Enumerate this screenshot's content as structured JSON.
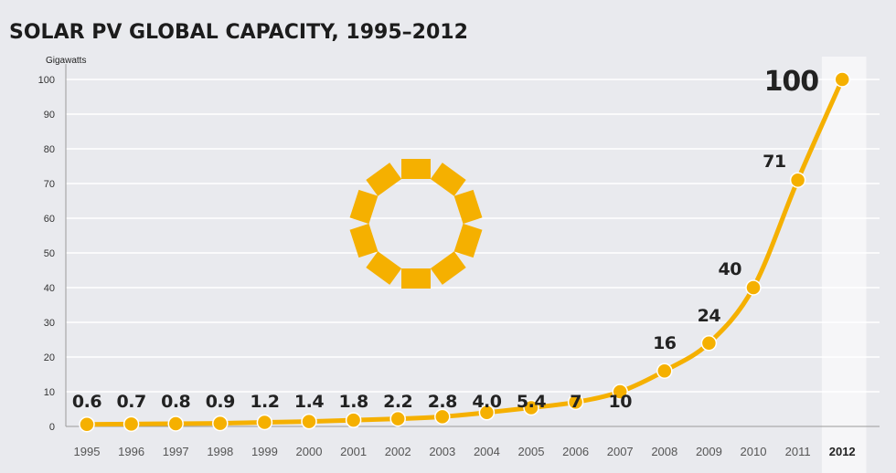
{
  "chart_data": {
    "type": "line",
    "title": "SOLAR PV GLOBAL CAPACITY, 1995–2012",
    "ylabel": "Gigawatts",
    "xlabel": "",
    "categories": [
      "1995",
      "1996",
      "1997",
      "1998",
      "1999",
      "2000",
      "2001",
      "2002",
      "2003",
      "2004",
      "2005",
      "2006",
      "2007",
      "2008",
      "2009",
      "2010",
      "2011",
      "2012"
    ],
    "series": [
      {
        "name": "",
        "values": [
          0.6,
          0.7,
          0.8,
          0.9,
          1.2,
          1.4,
          1.8,
          2.2,
          2.8,
          4.0,
          5.4,
          7,
          10,
          16,
          24,
          40,
          71,
          100
        ],
        "labels": [
          "0.6",
          "0.7",
          "0.8",
          "0.9",
          "1.2",
          "1.4",
          "1.8",
          "2.2",
          "2.8",
          "4.0",
          "5.4",
          "7",
          "10",
          "16",
          "24",
          "40",
          "71",
          "100"
        ]
      }
    ],
    "y_ticks": [
      0,
      10,
      20,
      30,
      40,
      50,
      60,
      70,
      80,
      90,
      100
    ],
    "ylim": [
      0,
      100
    ],
    "grid": true,
    "highlight_category": "2012",
    "colors": {
      "line": "#f5b000",
      "marker": "#f5b000",
      "grid": "#ffffff",
      "background": "#e9eaee",
      "highlight_band": "#f6f6f8",
      "sun_icon": "#f5b000"
    },
    "icon": "sun-icon"
  }
}
